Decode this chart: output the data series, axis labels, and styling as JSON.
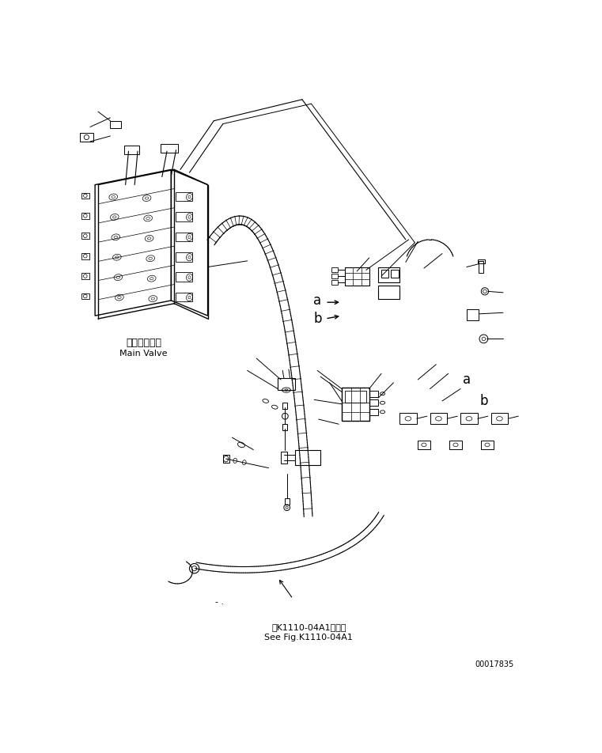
{
  "background_color": "#ffffff",
  "line_color": "#000000",
  "fig_width": 7.61,
  "fig_height": 9.52,
  "dpi": 100,
  "label_main_valve_jp": "メインバルブ",
  "label_main_valve_en": "Main Valve",
  "label_see_fig_jp": "第K1110-04A1図参照",
  "label_see_fig_en": "See Fig.K1110-04A1",
  "label_doc_number": "00017835",
  "label_a1": "a",
  "label_b1": "b",
  "label_a2": "a",
  "label_b2": "b",
  "font_size_label": 9,
  "font_size_small": 7,
  "font_size_doc": 7,
  "hose_color": "#000000",
  "wrap_color": "#000000"
}
